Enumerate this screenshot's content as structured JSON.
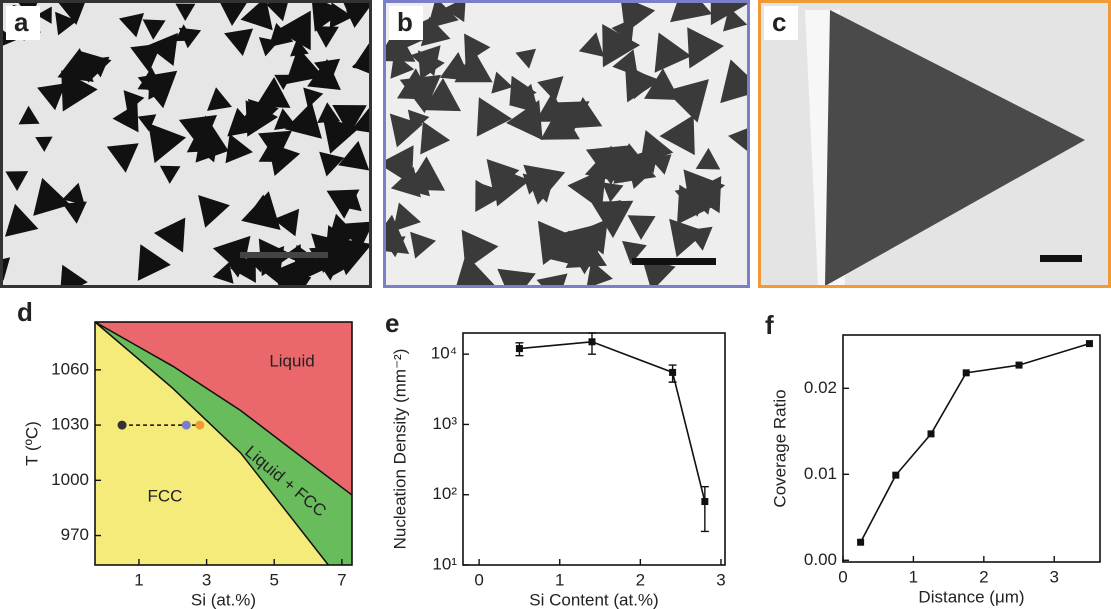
{
  "panels": [
    {
      "label": "a"
    },
    {
      "label": "b"
    },
    {
      "label": "c"
    }
  ],
  "chart_data": [
    {
      "type": "phase",
      "label": "d",
      "xlabel": "Si  (at.%)",
      "ylabel": "T (ºC)",
      "xlim": [
        -0.3,
        7.3
      ],
      "ylim": [
        954,
        1086
      ],
      "xticks": [
        1,
        3,
        5,
        7
      ],
      "yticks": [
        970,
        1000,
        1030,
        1060
      ],
      "boundaries": [
        {
          "x": [
            -0.3,
            2,
            4,
            5.5,
            7.3
          ],
          "y": [
            1086,
            1062,
            1038,
            1017,
            992
          ]
        },
        {
          "x": [
            -0.3,
            2,
            4,
            6.6
          ],
          "y": [
            1086,
            1050,
            1015,
            954
          ]
        }
      ],
      "region_colors": [
        "#ea676b",
        "#69bc5c",
        "#f4eb7a"
      ],
      "region_labels": [
        "Liquid",
        "Liquid + FCC",
        "FCC"
      ],
      "points": {
        "x": [
          0.5,
          2.4,
          2.8
        ],
        "y": [
          1030,
          1030,
          1030
        ],
        "colors": [
          "#333333",
          "#7b7fc8",
          "#f29a38"
        ]
      }
    },
    {
      "type": "line",
      "label": "e",
      "xlabel": "Si Content (at.%)",
      "ylabel": "Nucleation Density (mm⁻²)",
      "xlim": [
        -0.2,
        3.05
      ],
      "ylim": [
        10,
        20000
      ],
      "log_y": true,
      "xticks": [
        0,
        1,
        2,
        3
      ],
      "yticks": [
        {
          "value": 10,
          "label": "10¹"
        },
        {
          "value": 100,
          "label": "10²"
        },
        {
          "value": 1000,
          "label": "10³"
        },
        {
          "value": 10000,
          "label": "10⁴"
        }
      ],
      "x": [
        0.5,
        1.4,
        2.4,
        2.8
      ],
      "values": [
        12000,
        15000,
        5500,
        80
      ],
      "errors": [
        2500,
        5000,
        1500,
        50
      ],
      "color": "#111111"
    },
    {
      "type": "line",
      "label": "f",
      "xlabel": "Distance  (μm)",
      "ylabel": "Coverage Ratio",
      "xlim": [
        0,
        3.65
      ],
      "ylim": [
        -0.0002,
        0.0262
      ],
      "xticks": [
        0,
        1,
        2,
        3
      ],
      "yticks": [
        {
          "value": 0,
          "label": "0.00"
        },
        0.01,
        0.02
      ],
      "x": [
        0.25,
        0.75,
        1.25,
        1.75,
        2.5,
        3.5
      ],
      "values": [
        0.0021,
        0.0099,
        0.0147,
        0.0218,
        0.0227,
        0.0252
      ],
      "color": "#111111"
    }
  ]
}
